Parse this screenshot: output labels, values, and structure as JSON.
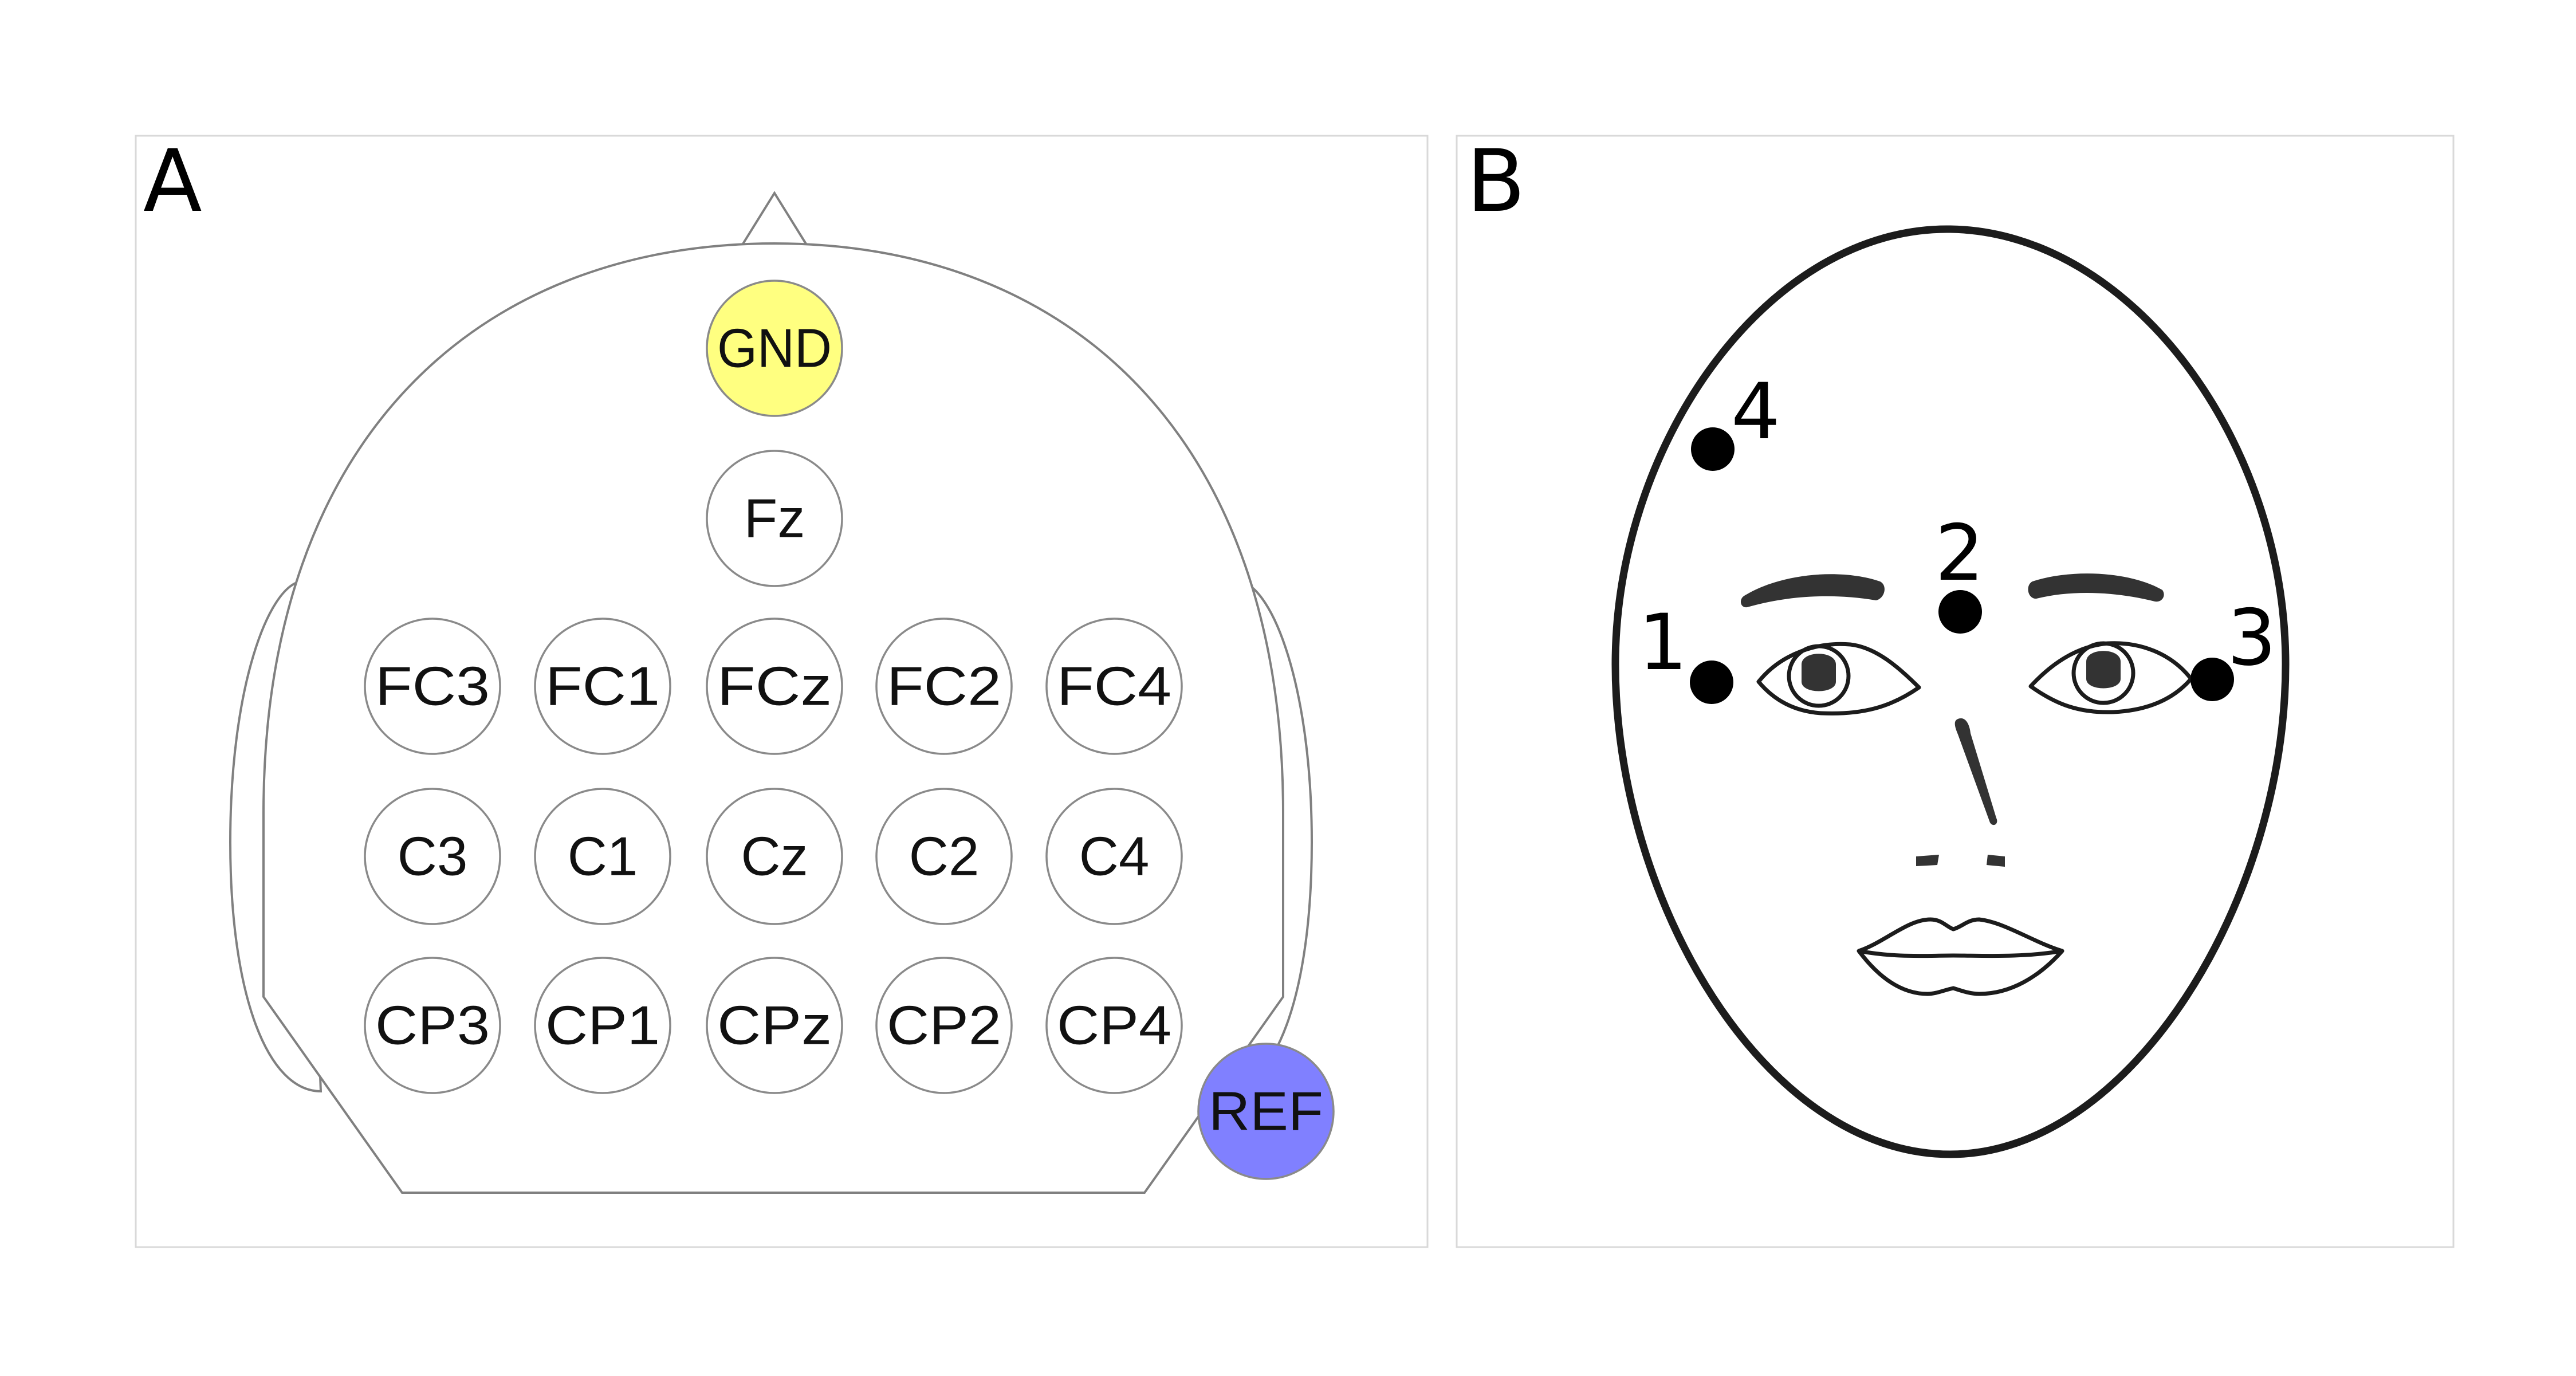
{
  "panels": {
    "a": {
      "letter": "A"
    },
    "b": {
      "letter": "B"
    }
  },
  "colors": {
    "ground": "#ffff80",
    "reference": "#8080ff",
    "electrode": "#ffffff"
  },
  "electrodes": [
    {
      "id": "gnd",
      "label": "GND",
      "kind": "ground"
    },
    {
      "id": "fz",
      "label": "Fz",
      "kind": "electrode"
    },
    {
      "id": "fc3",
      "label": "FC3",
      "kind": "electrode"
    },
    {
      "id": "fc1",
      "label": "FC1",
      "kind": "electrode"
    },
    {
      "id": "fcz",
      "label": "FCz",
      "kind": "electrode"
    },
    {
      "id": "fc2",
      "label": "FC2",
      "kind": "electrode"
    },
    {
      "id": "fc4",
      "label": "FC4",
      "kind": "electrode"
    },
    {
      "id": "c3",
      "label": "C3",
      "kind": "electrode"
    },
    {
      "id": "c1",
      "label": "C1",
      "kind": "electrode"
    },
    {
      "id": "cz",
      "label": "Cz",
      "kind": "electrode"
    },
    {
      "id": "c2",
      "label": "C2",
      "kind": "electrode"
    },
    {
      "id": "c4",
      "label": "C4",
      "kind": "electrode"
    },
    {
      "id": "cp3",
      "label": "CP3",
      "kind": "electrode"
    },
    {
      "id": "cp1",
      "label": "CP1",
      "kind": "electrode"
    },
    {
      "id": "cpz",
      "label": "CPz",
      "kind": "electrode"
    },
    {
      "id": "cp2",
      "label": "CP2",
      "kind": "electrode"
    },
    {
      "id": "cp4",
      "label": "CP4",
      "kind": "electrode"
    },
    {
      "id": "ref",
      "label": "REF",
      "kind": "reference"
    }
  ],
  "face_sites": [
    {
      "id": "1",
      "label": "1"
    },
    {
      "id": "2",
      "label": "2"
    },
    {
      "id": "3",
      "label": "3"
    },
    {
      "id": "4",
      "label": "4"
    }
  ]
}
